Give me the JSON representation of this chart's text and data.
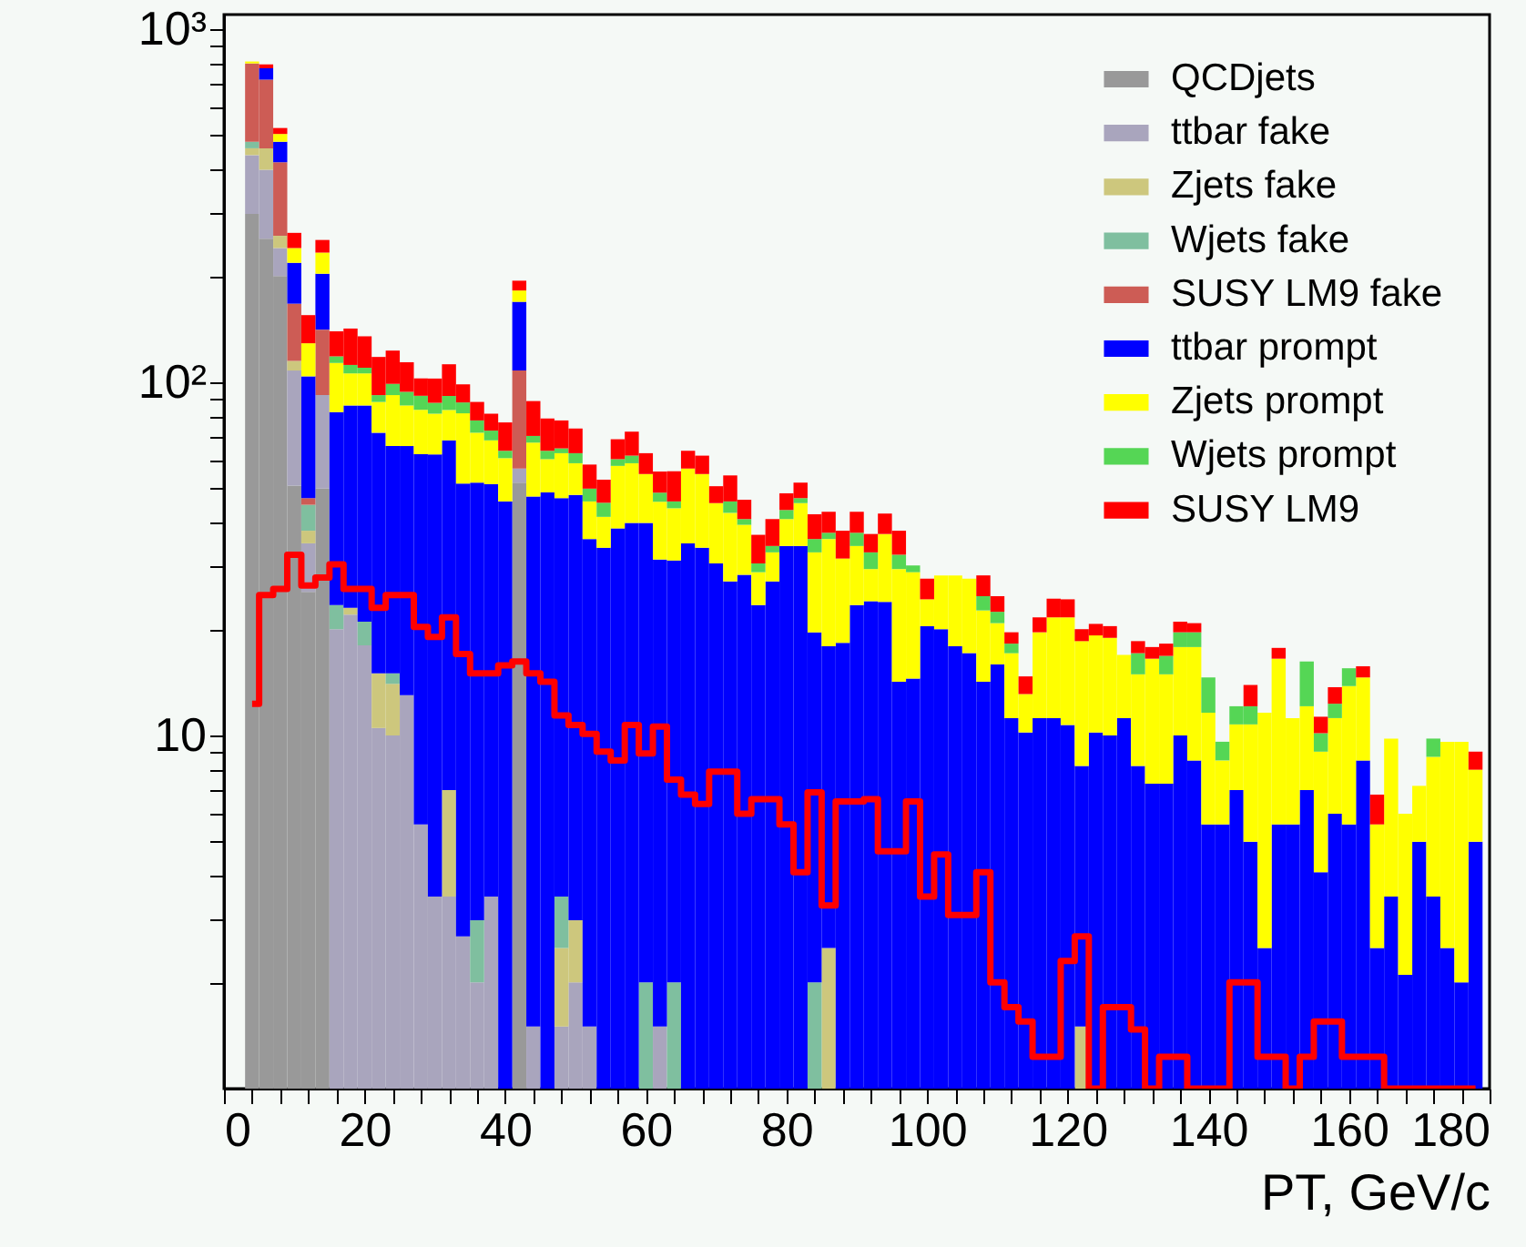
{
  "chart_data": {
    "type": "bar",
    "xlabel": "PT, GeV/c",
    "stacked": true,
    "log": "y",
    "legend": "top right",
    "xlim": [
      0,
      180
    ],
    "ylim": [
      1,
      1100
    ],
    "xticks": [
      0,
      {
        "value": 4,
        "label": null
      },
      {
        "value": 8,
        "label": null
      },
      {
        "value": 12,
        "label": null
      },
      {
        "value": 16,
        "label": null
      },
      20,
      {
        "value": 24,
        "label": null
      },
      {
        "value": 28,
        "label": null
      },
      {
        "value": 32,
        "label": null
      },
      {
        "value": 36,
        "label": null
      },
      40,
      {
        "value": 44,
        "label": null
      },
      {
        "value": 48,
        "label": null
      },
      {
        "value": 52,
        "label": null
      },
      {
        "value": 56,
        "label": null
      },
      60,
      {
        "value": 64,
        "label": null
      },
      {
        "value": 68,
        "label": null
      },
      {
        "value": 72,
        "label": null
      },
      {
        "value": 76,
        "label": null
      },
      80,
      {
        "value": 84,
        "label": null
      },
      {
        "value": 88,
        "label": null
      },
      {
        "value": 92,
        "label": null
      },
      {
        "value": 96,
        "label": null
      },
      100,
      {
        "value": 104,
        "label": null
      },
      {
        "value": 108,
        "label": null
      },
      {
        "value": 112,
        "label": null
      },
      {
        "value": 116,
        "label": null
      },
      120,
      {
        "value": 124,
        "label": null
      },
      {
        "value": 128,
        "label": null
      },
      {
        "value": 132,
        "label": null
      },
      {
        "value": 136,
        "label": null
      },
      140,
      {
        "value": 144,
        "label": null
      },
      {
        "value": 148,
        "label": null
      },
      {
        "value": 152,
        "label": null
      },
      {
        "value": 156,
        "label": null
      },
      160,
      {
        "value": 164,
        "label": null
      },
      {
        "value": 168,
        "label": null
      },
      {
        "value": 172,
        "label": null
      },
      {
        "value": 176,
        "label": null
      },
      180
    ],
    "yticks": [
      {
        "value": 2,
        "label": null
      },
      {
        "value": 3,
        "label": null
      },
      {
        "value": 4,
        "label": null
      },
      {
        "value": 5,
        "label": null
      },
      {
        "value": 6,
        "label": null
      },
      {
        "value": 7,
        "label": null
      },
      {
        "value": 8,
        "label": null
      },
      {
        "value": 9,
        "label": null
      },
      10,
      {
        "value": 20,
        "label": null
      },
      {
        "value": 30,
        "label": null
      },
      {
        "value": 40,
        "label": null
      },
      {
        "value": 50,
        "label": null
      },
      {
        "value": 60,
        "label": null
      },
      {
        "value": 70,
        "label": null
      },
      {
        "value": 80,
        "label": null
      },
      {
        "value": 90,
        "label": null
      },
      {
        "value": 100,
        "label": "10²"
      },
      {
        "value": 200,
        "label": null
      },
      {
        "value": 300,
        "label": null
      },
      {
        "value": 400,
        "label": null
      },
      {
        "value": 500,
        "label": null
      },
      {
        "value": 600,
        "label": null
      },
      {
        "value": 700,
        "label": null
      },
      {
        "value": 800,
        "label": null
      },
      {
        "value": 900,
        "label": null
      },
      {
        "value": 1000,
        "label": "10³"
      }
    ],
    "x": [
      4,
      6,
      8,
      10,
      12,
      14,
      16,
      18,
      20,
      22,
      24,
      26,
      28,
      30,
      32,
      34,
      36,
      38,
      40,
      42,
      44,
      46,
      48,
      50,
      52,
      54,
      56,
      58,
      60,
      62,
      64,
      66,
      68,
      70,
      72,
      74,
      76,
      78,
      80,
      82,
      84,
      86,
      88,
      90,
      92,
      94,
      96,
      98,
      100,
      102,
      104,
      106,
      108,
      110,
      112,
      114,
      116,
      118,
      120,
      122,
      124,
      126,
      128,
      130,
      132,
      134,
      136,
      138,
      140,
      142,
      144,
      146,
      148,
      150,
      152,
      154,
      156,
      158,
      160,
      162,
      164,
      166,
      168,
      170,
      172,
      174,
      176,
      178
    ],
    "series": [
      {
        "name": "QCDjets",
        "color": "#999999",
        "values": [
          300,
          255,
          200,
          51,
          25.5,
          50,
          null,
          null,
          null,
          null,
          null,
          null,
          null,
          null,
          null,
          null,
          null,
          null,
          null,
          52,
          null,
          null,
          null,
          null,
          null,
          null,
          null,
          null,
          null,
          null,
          null,
          null,
          null,
          null,
          null,
          null,
          null,
          null,
          null,
          null,
          null,
          null,
          null,
          null,
          null,
          null,
          null,
          null,
          null,
          null,
          null,
          null,
          null,
          null,
          null,
          null,
          null,
          null,
          null,
          null,
          null,
          null,
          null,
          null,
          null,
          null,
          null,
          null,
          null,
          null,
          null,
          null,
          null,
          null,
          null,
          null,
          null,
          null,
          null,
          null,
          null,
          null,
          null,
          null,
          null,
          null,
          null,
          null
        ]
      },
      {
        "name": "ttbar fake",
        "color": "#a9a5bd",
        "values": [
          140,
          145,
          40,
          57,
          9.5,
          42,
          20,
          22,
          18,
          10.5,
          10,
          13,
          5.6,
          3.5,
          3.5,
          2.7,
          2.0,
          3.5,
          null,
          5,
          1.5,
          null,
          1.5,
          2.0,
          1.5,
          null,
          null,
          null,
          null,
          1.5,
          null,
          null,
          null,
          null,
          null,
          null,
          null,
          null,
          null,
          null,
          null,
          null,
          null,
          null,
          null,
          null,
          null,
          null,
          null,
          null,
          null,
          null,
          null,
          null,
          null,
          null,
          null,
          null,
          null,
          null,
          null,
          null,
          null,
          null,
          null,
          null,
          null,
          null,
          null,
          null,
          null,
          null,
          null,
          null,
          null,
          null,
          null,
          null,
          null,
          null,
          null,
          null,
          null,
          null,
          null,
          null,
          null,
          null
        ]
      },
      {
        "name": "Zjets fake",
        "color": "#cdc77d",
        "values": [
          20,
          60,
          20,
          7,
          3,
          null,
          null,
          1,
          null,
          4.5,
          4,
          null,
          null,
          null,
          3.5,
          null,
          null,
          null,
          null,
          null,
          null,
          null,
          1.0,
          1.0,
          null,
          null,
          null,
          null,
          null,
          null,
          null,
          null,
          null,
          null,
          null,
          null,
          null,
          null,
          null,
          null,
          null,
          2.5,
          null,
          null,
          null,
          null,
          null,
          null,
          null,
          null,
          null,
          null,
          null,
          null,
          null,
          null,
          null,
          null,
          null,
          1.5,
          null,
          null,
          null,
          null,
          null,
          null,
          null,
          null,
          null,
          null,
          null,
          null,
          null,
          null,
          null,
          null,
          null,
          null,
          null,
          null,
          null,
          null,
          null,
          null,
          null,
          null,
          null,
          null
        ]
      },
      {
        "name": "Wjets fake",
        "color": "#7fbf9f",
        "values": [
          20,
          null,
          null,
          null,
          7,
          null,
          3.4,
          null,
          3,
          null,
          1,
          null,
          null,
          null,
          null,
          null,
          1.0,
          null,
          null,
          null,
          null,
          null,
          1.0,
          null,
          null,
          null,
          null,
          null,
          2.0,
          null,
          2.0,
          null,
          null,
          null,
          null,
          null,
          null,
          null,
          null,
          null,
          2.0,
          null,
          null,
          null,
          null,
          null,
          null,
          null,
          null,
          null,
          null,
          null,
          null,
          null,
          null,
          null,
          null,
          null,
          null,
          null,
          null,
          null,
          null,
          null,
          null,
          null,
          null,
          null,
          null,
          null,
          null,
          null,
          null,
          null,
          null,
          null,
          null,
          null,
          null,
          null,
          null,
          null,
          null,
          null,
          null,
          null,
          null,
          null
        ]
      },
      {
        "name": "SUSY LM9 fake",
        "color": "#cd5c55",
        "values": [
          320,
          260,
          160,
          52,
          2,
          49,
          null,
          null,
          null,
          null,
          null,
          null,
          null,
          null,
          null,
          null,
          null,
          null,
          null,
          51,
          null,
          null,
          null,
          null,
          null,
          null,
          null,
          null,
          null,
          null,
          null,
          null,
          null,
          null,
          null,
          null,
          null,
          null,
          null,
          null,
          null,
          null,
          null,
          null,
          null,
          null,
          null,
          null,
          null,
          null,
          null,
          null,
          null,
          null,
          null,
          null,
          null,
          null,
          null,
          null,
          null,
          null,
          null,
          null,
          null,
          null,
          null,
          null,
          null,
          null,
          null,
          null,
          null,
          null,
          null,
          null,
          null,
          null,
          null,
          null,
          null,
          null,
          null,
          null,
          null,
          null,
          null,
          null
        ]
      },
      {
        "name": "ttbar prompt",
        "color": "#0000ff",
        "values": [
          null,
          55,
          60,
          51,
          57,
          62,
          59,
          63,
          65,
          57,
          51,
          53,
          57,
          59,
          61.5,
          49,
          49,
          48,
          46,
          61,
          46,
          48.8,
          43.5,
          45,
          34.5,
          34,
          38.6,
          40,
          38,
          30,
          29.3,
          35,
          34,
          30.7,
          27.3,
          28.5,
          23.4,
          27.3,
          34.4,
          34.4,
          17.6,
          15.4,
          18.3,
          23.4,
          24,
          23.9,
          14.2,
          14.5,
          20.4,
          20,
          17.9,
          17.1,
          14.2,
          15.9,
          11.2,
          10.2,
          11.2,
          11.2,
          10.7,
          6.7,
          10.2,
          10,
          11.2,
          8.2,
          7.3,
          7.3,
          10,
          8.5,
          5.6,
          5.6,
          7.0,
          5.0,
          2.5,
          5.6,
          5.6,
          7.0,
          4.1,
          6.0,
          5.6,
          8.5,
          2.5,
          3.5,
          2.1,
          5.0,
          3.5,
          2.5,
          2.0,
          5.0
        ]
      },
      {
        "name": "Zjets prompt",
        "color": "#ffff00",
        "values": [
          10,
          null,
          25,
          22,
          25,
          30,
          31,
          20,
          20,
          16,
          26,
          20,
          21,
          19,
          15,
          30,
          20,
          17,
          15,
          13,
          20,
          11.8,
          16,
          11,
          10,
          7.6,
          19.4,
          19,
          15,
          14.4,
          12.7,
          22,
          21,
          14.8,
          15.4,
          11,
          5.6,
          5.7,
          6.6,
          11.1,
          13.4,
          18.1,
          13.4,
          11,
          5.6,
          13.3,
          15.4,
          14.5,
          3.9,
          8.4,
          10.5,
          10.7,
          8.4,
          4.9,
          5.9,
          2.9,
          8.4,
          10.4,
          10.9,
          10.3,
          9,
          8.9,
          5.7,
          6.7,
          9.2,
          7.6,
          7.8,
          9.3,
          6.0,
          2.9,
          3.75,
          5.75,
          9.1,
          10.9,
          5.6,
          5.1,
          4.9,
          5.2,
          8.2,
          6.1,
          3.1,
          6.3,
          3.9,
          2.2,
          5.2,
          7.1,
          7.6,
          3.0
        ]
      },
      {
        "name": "Wjets prompt",
        "color": "#55d655",
        "values": [
          null,
          null,
          null,
          null,
          null,
          null,
          5,
          6,
          4,
          4,
          7,
          8,
          8,
          6,
          8,
          6,
          6,
          4.5,
          3,
          null,
          3,
          3.4,
          2,
          4,
          4,
          4,
          2.6,
          3,
          null,
          2.8,
          2,
          null,
          null,
          null,
          3.3,
          1.5,
          1.7,
          1.4,
          2.5,
          1.5,
          3,
          1.5,
          null,
          3.1,
          3.4,
          null,
          2.9,
          1.3,
          null,
          null,
          null,
          null,
          2.2,
          1.6,
          1.1,
          null,
          null,
          null,
          null,
          null,
          null,
          null,
          null,
          2.2,
          null,
          1.9,
          1.8,
          1.8,
          3.0,
          1.1,
          1.35,
          1.35,
          null,
          null,
          null,
          4.1,
          1.15,
          1.1,
          1.7,
          null,
          null,
          null,
          null,
          null,
          1.1,
          null,
          null,
          null
        ]
      },
      {
        "name": "SUSY LM9",
        "color": "#ff0000",
        "values": [
          null,
          20,
          20,
          25,
          26,
          20,
          21,
          30,
          25,
          26,
          24,
          20,
          11,
          15,
          21,
          11,
          10,
          8.5,
          13,
          12,
          18,
          15,
          13,
          11,
          8.5,
          7.4,
          8.4,
          10.5,
          8,
          7.2,
          10,
          7,
          7,
          5.3,
          8.5,
          5.5,
          6.3,
          6.6,
          5,
          5,
          6.3,
          5.5,
          6.3,
          5.5,
          4.2,
          5.3,
          5.5,
          null,
          3.5,
          null,
          null,
          null,
          3.6,
          2.4,
          1.4,
          1.6,
          2.0,
          2.8,
          2.7,
          1.5,
          1.5,
          1.5,
          null,
          1.4,
          1.3,
          1.4,
          1.4,
          1.2,
          null,
          null,
          null,
          1.8,
          null,
          1.2,
          null,
          null,
          1.15,
          1.4,
          null,
          1.1,
          1.2,
          null,
          null,
          null,
          null,
          null,
          null,
          1.0
        ]
      },
      {
        "type": "step",
        "color": "#ff0000",
        "values": [
          12.3,
          25,
          26,
          32.5,
          26.6,
          28,
          30.5,
          26,
          26,
          23,
          25,
          25,
          20.3,
          19,
          21.6,
          17,
          15,
          15,
          15.8,
          16.2,
          15,
          14.2,
          11.4,
          10.7,
          10.1,
          9.0,
          8.5,
          10.7,
          8.9,
          10.6,
          7.5,
          6.8,
          6.4,
          7.9,
          7.9,
          6.0,
          6.6,
          6.6,
          5.6,
          4.1,
          6.9,
          3.3,
          6.5,
          6.5,
          6.6,
          4.7,
          4.7,
          6.5,
          3.5,
          4.6,
          3.1,
          3.1,
          4.1,
          2.0,
          1.7,
          1.55,
          1.23,
          1.23,
          2.3,
          2.7,
          1.0,
          1.7,
          1.7,
          1.47,
          1.0,
          1.23,
          1.23,
          1.0,
          1.0,
          1.0,
          2.0,
          2.0,
          1.23,
          1.23,
          1.0,
          1.23,
          1.55,
          1.55,
          1.23,
          1.23,
          1.23,
          1.0,
          1.0,
          1.0,
          1.0,
          1.0,
          1.0,
          1.0
        ]
      }
    ]
  }
}
